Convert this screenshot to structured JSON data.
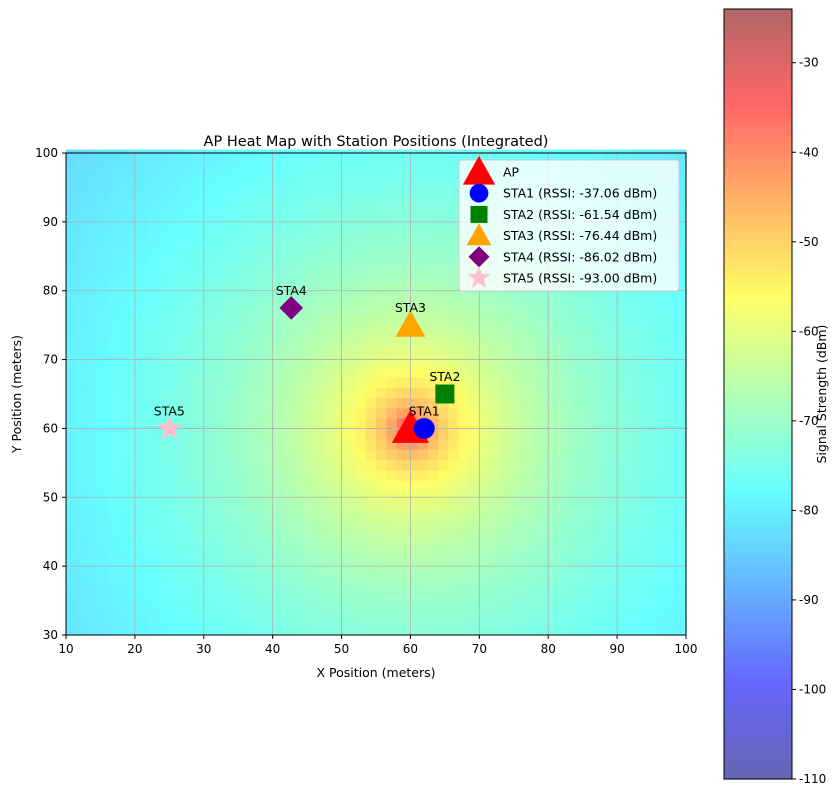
{
  "chart_data": {
    "type": "heatmap",
    "title": "AP Heat Map with Station Positions (Integrated)",
    "xlabel": "X Position (meters)",
    "ylabel": "Y Position (meters)",
    "xlim": [
      10,
      100
    ],
    "ylim": [
      30,
      100
    ],
    "xticks": [
      10,
      20,
      30,
      40,
      50,
      60,
      70,
      80,
      90,
      100
    ],
    "yticks": [
      30,
      40,
      50,
      60,
      70,
      80,
      90,
      100
    ],
    "grid": true,
    "legend_position": "top-right",
    "colorbar": {
      "label": "Signal Strength (dBm)",
      "range": [
        -110,
        -24
      ],
      "ticks": [
        -110,
        -100,
        -90,
        -80,
        -70,
        -60,
        -50,
        -40,
        -30
      ],
      "colormap": "jet",
      "alpha": 0.6
    },
    "heatmap_source": {
      "x": 60,
      "y": 60,
      "peak_dbm": -24,
      "floor_dbm": -110
    },
    "ap": {
      "name": "AP",
      "x": 60,
      "y": 60,
      "marker": "triangle",
      "color": "#ff0000"
    },
    "stations": [
      {
        "name": "STA1",
        "legend": "STA1 (RSSI: -37.06 dBm)",
        "x": 62,
        "y": 60,
        "rssi": -37.06,
        "marker": "circle",
        "color": "#0000ff"
      },
      {
        "name": "STA2",
        "legend": "STA2 (RSSI: -61.54 dBm)",
        "x": 65,
        "y": 65,
        "rssi": -61.54,
        "marker": "square",
        "color": "#008000"
      },
      {
        "name": "STA3",
        "legend": "STA3 (RSSI: -76.44 dBm)",
        "x": 60,
        "y": 75,
        "rssi": -76.44,
        "marker": "triangle",
        "color": "#ffa500"
      },
      {
        "name": "STA4",
        "legend": "STA4 (RSSI: -86.02 dBm)",
        "x": 42.7,
        "y": 77.5,
        "rssi": -86.02,
        "marker": "diamond",
        "color": "#800080"
      },
      {
        "name": "STA5",
        "legend": "STA5 (RSSI: -93.00 dBm)",
        "x": 25,
        "y": 60,
        "rssi": -93.0,
        "marker": "star",
        "color": "#ffc0cb"
      }
    ]
  }
}
